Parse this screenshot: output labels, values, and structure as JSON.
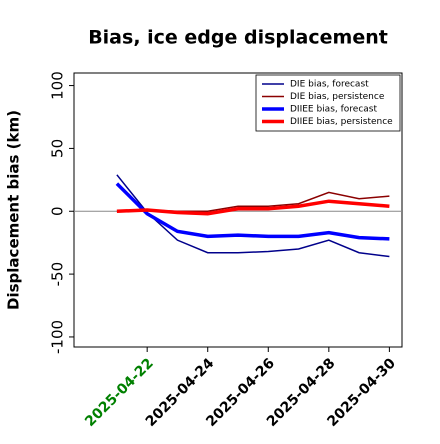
{
  "chart_data": {
    "type": "line",
    "title": "Bias, ice edge displacement",
    "y_label": "Displacement bias (km)",
    "x": [
      "2025-04-21",
      "2025-04-22",
      "2025-04-23",
      "2025-04-24",
      "2025-04-25",
      "2025-04-26",
      "2025-04-27",
      "2025-04-28",
      "2025-04-29",
      "2025-04-30"
    ],
    "series": [
      {
        "name": "DIE bias, forecast",
        "color": "#00008b",
        "width": 1.5,
        "values": [
          29,
          -1,
          -23,
          -33,
          -33,
          -32,
          -30,
          -23,
          -33,
          -36
        ]
      },
      {
        "name": "DIE bias, persistence",
        "color": "#8b0000",
        "width": 1.5,
        "values": [
          0,
          1,
          0,
          0,
          4,
          4,
          6,
          15,
          10,
          12
        ]
      },
      {
        "name": "DIIEE bias, forecast",
        "color": "#0000ff",
        "width": 3.5,
        "values": [
          22,
          -2,
          -16,
          -20,
          -19,
          -20,
          -20,
          -17,
          -21,
          -22
        ]
      },
      {
        "name": "DIIEE bias, persistence",
        "color": "#ff0000",
        "width": 3.5,
        "values": [
          0,
          1,
          -1,
          -2,
          2,
          2,
          4,
          8,
          6,
          4
        ]
      }
    ],
    "xlim": [
      "2025-04-19T14:00",
      "2025-04-30T10:00"
    ],
    "xticks": [
      "2025-04-22",
      "2025-04-24",
      "2025-04-26",
      "2025-04-28",
      "2025-04-30"
    ],
    "xtick_colors": [
      "green",
      "black",
      "black",
      "black",
      "black"
    ],
    "ylim": [
      -108,
      110
    ],
    "yticks": [
      -100,
      -50,
      0,
      50,
      100
    ],
    "zero_line": true,
    "legend": "upper right"
  }
}
